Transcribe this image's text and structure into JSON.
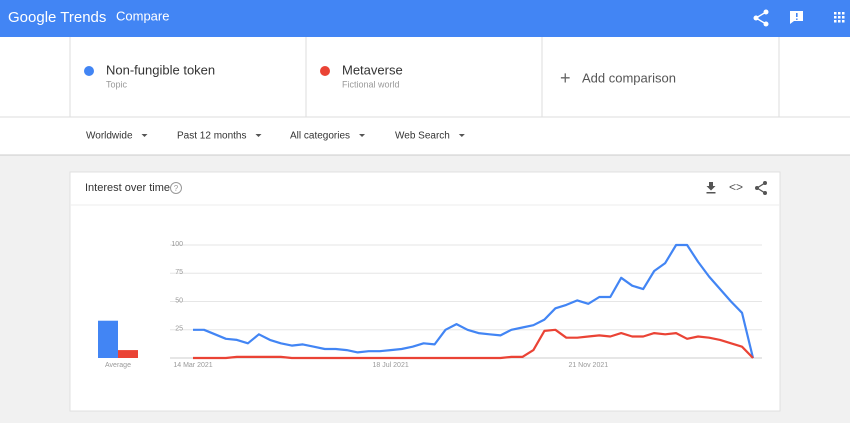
{
  "header": {
    "logo": "Google Trends",
    "title": "Compare"
  },
  "compare": [
    {
      "name": "Non-fungible token",
      "subtitle": "Topic",
      "color": "#4285f4"
    },
    {
      "name": "Metaverse",
      "subtitle": "Fictional world",
      "color": "#ea4335"
    }
  ],
  "add_comparison": "Add comparison",
  "filters": [
    "Worldwide",
    "Past 12 months",
    "All categories",
    "Web Search"
  ],
  "chart_data": {
    "type": "line",
    "title": "Interest over time",
    "average_label": "Average",
    "categories": [
      "14 Mar 2021",
      null,
      null,
      null,
      null,
      null,
      null,
      null,
      null,
      null,
      null,
      null,
      null,
      null,
      null,
      null,
      null,
      null,
      "18 Jul 2021",
      null,
      null,
      null,
      null,
      null,
      null,
      null,
      null,
      null,
      null,
      null,
      null,
      null,
      null,
      null,
      null,
      null,
      "21 Nov 2021",
      null,
      null,
      null,
      null,
      null,
      null,
      null,
      null,
      null,
      null,
      null,
      null,
      null,
      null,
      null
    ],
    "series": [
      {
        "name": "Non-fungible token",
        "color": "#4285f4",
        "average": 33,
        "values": [
          25,
          25,
          21,
          17,
          16,
          13,
          21,
          16,
          13,
          11,
          12,
          10,
          8,
          8,
          7,
          5,
          6,
          6,
          7,
          8,
          10,
          13,
          12,
          25,
          30,
          25,
          22,
          21,
          20,
          25,
          27,
          29,
          34,
          44,
          47,
          51,
          48,
          54,
          54,
          71,
          64,
          61,
          77,
          84,
          100,
          100,
          85,
          72,
          61,
          50,
          40,
          0
        ]
      },
      {
        "name": "Metaverse",
        "color": "#ea4335",
        "average": 7,
        "values": [
          0,
          0,
          0,
          0,
          1,
          1,
          1,
          1,
          1,
          0,
          0,
          0,
          0,
          0,
          0,
          0,
          0,
          0,
          0,
          0,
          0,
          0,
          0,
          0,
          0,
          0,
          0,
          0,
          0,
          1,
          1,
          7,
          24,
          25,
          18,
          18,
          19,
          20,
          19,
          22,
          19,
          19,
          22,
          21,
          22,
          17,
          19,
          18,
          16,
          13,
          10,
          0
        ]
      }
    ],
    "ylim": [
      0,
      100
    ],
    "yticks": [
      25,
      50,
      75,
      100
    ],
    "grid": true
  }
}
